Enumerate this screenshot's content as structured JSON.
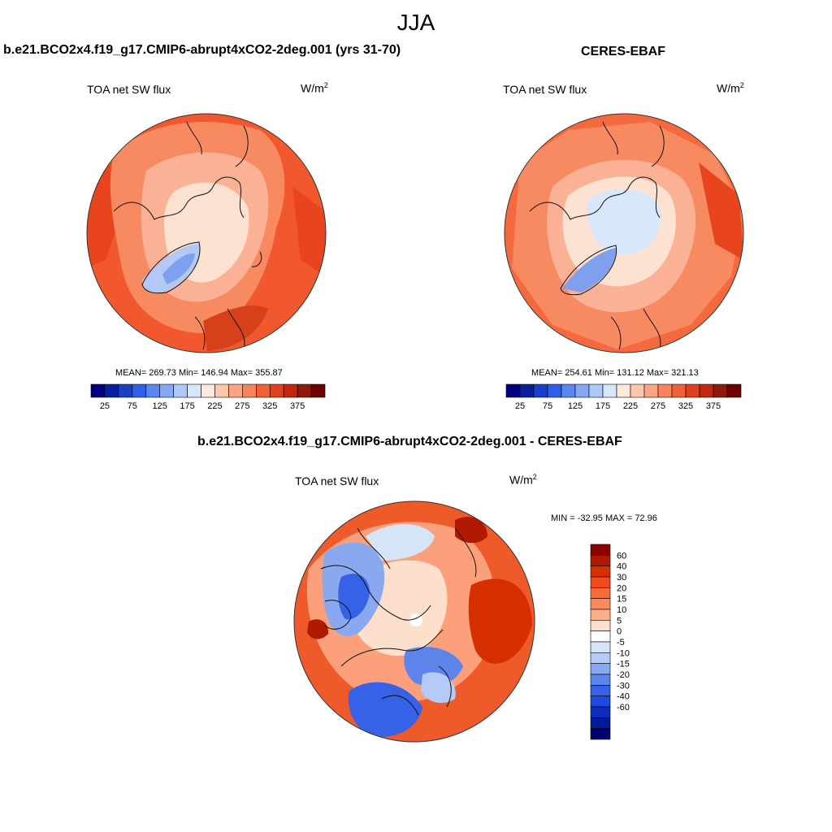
{
  "season": "JJA",
  "panel_left": {
    "title": "b.e21.BCO2x4.f19_g17.CMIP6-abrupt4xCO2-2deg.001 (yrs 31-70)",
    "variable": "TOA net SW flux",
    "unit_base": "W/m",
    "unit_exp": "2",
    "stats": "MEAN= 269.73  Min= 146.94  Max= 355.87"
  },
  "panel_right": {
    "title": "CERES-EBAF",
    "variable": "TOA net SW flux",
    "unit_base": "W/m",
    "unit_exp": "2",
    "stats": "MEAN= 254.61  Min= 131.12  Max= 321.13"
  },
  "panel_diff": {
    "title": "b.e21.BCO2x4.f19_g17.CMIP6-abrupt4xCO2-2deg.001 - CERES-EBAF",
    "variable": "TOA net SW flux",
    "unit_base": "W/m",
    "unit_exp": "2",
    "stats": "MIN = -32.95 MAX =  72.96"
  },
  "abs_colorbar": {
    "colors": [
      "#000080",
      "#0a1f9e",
      "#1a40c8",
      "#2f5ee8",
      "#5a86f0",
      "#86a8f4",
      "#b0c8f8",
      "#d8e6fb",
      "#fde8dc",
      "#fcc7ad",
      "#fba585",
      "#f8845e",
      "#f26038",
      "#e04020",
      "#c02810",
      "#901808",
      "#700000"
    ],
    "tick_labels": [
      "25",
      "75",
      "125",
      "175",
      "225",
      "275",
      "325",
      "375"
    ]
  },
  "diff_colorbar": {
    "colors_top_to_bottom": [
      "#8b0000",
      "#b01a00",
      "#d63000",
      "#f24a1a",
      "#f86a3a",
      "#fb8b5e",
      "#fcb08a",
      "#fde0cc",
      "#ffffff",
      "#d6e4f8",
      "#b3cbf5",
      "#89a8f0",
      "#5c84ea",
      "#3562e6",
      "#1e48e0",
      "#0c2cc0",
      "#001a99",
      "#000070"
    ],
    "tick_labels": [
      "60",
      "40",
      "30",
      "20",
      "15",
      "10",
      "5",
      "0",
      "-5",
      "-10",
      "-15",
      "-20",
      "-30",
      "-40",
      "-60"
    ]
  },
  "map_colors": {
    "base_left": "#f1582e",
    "base_right": "#f46a3e",
    "base_diff": "#ef5a2b",
    "coast": "#111111"
  }
}
